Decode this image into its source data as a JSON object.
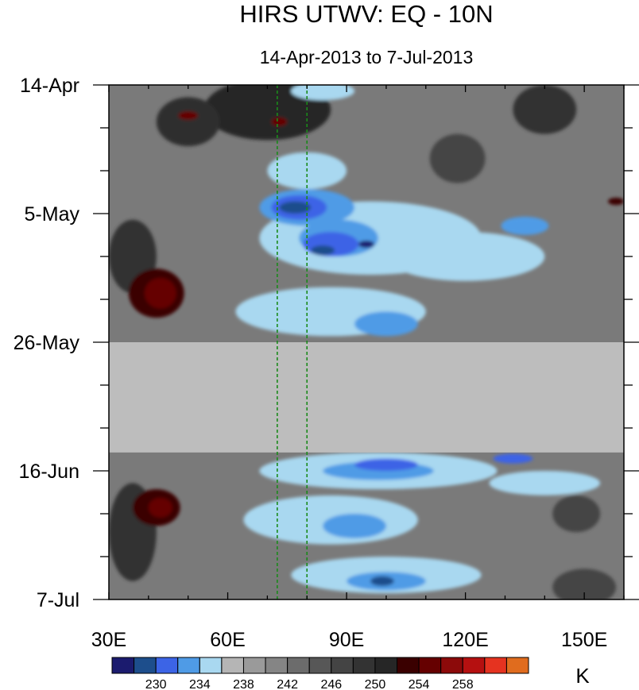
{
  "chart_data": {
    "type": "heatmap",
    "title": "HIRS UTWV: EQ - 10N",
    "subtitle": "14-Apr-2013 to 7-Jul-2013",
    "x_ticks": [
      {
        "value": 30,
        "label": "30E"
      },
      {
        "value": 60,
        "label": "60E"
      },
      {
        "value": 90,
        "label": "90E"
      },
      {
        "value": 120,
        "label": "120E"
      },
      {
        "value": 150,
        "label": "150E"
      }
    ],
    "xlim": [
      30,
      160
    ],
    "y_ticks": [
      {
        "value": "2013-04-14",
        "label": "14-Apr"
      },
      {
        "value": "2013-05-05",
        "label": "5-May"
      },
      {
        "value": "2013-05-26",
        "label": "26-May"
      },
      {
        "value": "2013-06-16",
        "label": "16-Jun"
      },
      {
        "value": "2013-07-07",
        "label": "7-Jul"
      }
    ],
    "ylim": [
      "2013-04-14",
      "2013-07-07"
    ],
    "reference_lines": {
      "color": "#1a8a1a",
      "style": "dashed",
      "x": [
        72.5,
        80
      ]
    },
    "missing_data": {
      "color": "#bdbdbd",
      "from": "2013-05-26",
      "to": "2013-06-13"
    },
    "colorbar": {
      "unit": "K",
      "colors": [
        "#1b1b6e",
        "#1d4e8c",
        "#3c64e6",
        "#4f9be6",
        "#a9d8f0",
        "#b5b5b5",
        "#9a9a9a",
        "#858585",
        "#6c6c6c",
        "#575757",
        "#444444",
        "#333333",
        "#262626",
        "#3a0000",
        "#650000",
        "#8c0a0a",
        "#b51010",
        "#e53320",
        "#e06c1e"
      ],
      "labels": [
        {
          "index": 2,
          "text": "230"
        },
        {
          "index": 4,
          "text": "234"
        },
        {
          "index": 6,
          "text": "238"
        },
        {
          "index": 8,
          "text": "242"
        },
        {
          "index": 10,
          "text": "246"
        },
        {
          "index": 12,
          "text": "250"
        },
        {
          "index": 14,
          "text": "254"
        },
        {
          "index": 16,
          "text": "258"
        }
      ]
    },
    "contour_regions": [
      {
        "level": "#262626",
        "x": 70,
        "y": "2013-04-18",
        "rx": 16,
        "ry": 5
      },
      {
        "level": "#2f2f2f",
        "x": 50,
        "y": "2013-04-20",
        "rx": 8,
        "ry": 4
      },
      {
        "level": "#333333",
        "x": 140,
        "y": "2013-04-18",
        "rx": 8,
        "ry": 4
      },
      {
        "level": "#333333",
        "x": 36,
        "y": "2013-05-12",
        "rx": 6,
        "ry": 6
      },
      {
        "level": "#444444",
        "x": 118,
        "y": "2013-04-26",
        "rx": 7,
        "ry": 4
      },
      {
        "level": "#3a0000",
        "x": 42,
        "y": "2013-05-18",
        "rx": 7,
        "ry": 4
      },
      {
        "level": "#650000",
        "x": 43,
        "y": "2013-05-18",
        "rx": 4,
        "ry": 2.5
      },
      {
        "level": "#650000",
        "x": 50,
        "y": "2013-04-19",
        "rx": 2.5,
        "ry": 0.7
      },
      {
        "level": "#650000",
        "x": 73,
        "y": "2013-04-20",
        "rx": 2,
        "ry": 0.7
      },
      {
        "level": "#3a0000",
        "x": 158,
        "y": "2013-05-03",
        "rx": 2,
        "ry": 0.6
      },
      {
        "level": "#a9d8f0",
        "x": 84,
        "y": "2013-04-15",
        "rx": 8,
        "ry": 1.5
      },
      {
        "level": "#a9d8f0",
        "x": 80,
        "y": "2013-04-28",
        "rx": 10,
        "ry": 3
      },
      {
        "level": "#a9d8f0",
        "x": 96,
        "y": "2013-05-09",
        "rx": 28,
        "ry": 6
      },
      {
        "level": "#a9d8f0",
        "x": 120,
        "y": "2013-05-12",
        "rx": 20,
        "ry": 4
      },
      {
        "level": "#a9d8f0",
        "x": 86,
        "y": "2013-05-21",
        "rx": 24,
        "ry": 4
      },
      {
        "level": "#4f9be6",
        "x": 80,
        "y": "2013-05-04",
        "rx": 12,
        "ry": 3
      },
      {
        "level": "#4f9be6",
        "x": 88,
        "y": "2013-05-09",
        "rx": 10,
        "ry": 3
      },
      {
        "level": "#4f9be6",
        "x": 135,
        "y": "2013-05-07",
        "rx": 6,
        "ry": 1.5
      },
      {
        "level": "#4f9be6",
        "x": 100,
        "y": "2013-05-23",
        "rx": 8,
        "ry": 2
      },
      {
        "level": "#3c64e6",
        "x": 78,
        "y": "2013-05-04",
        "rx": 7,
        "ry": 2
      },
      {
        "level": "#3c64e6",
        "x": 86,
        "y": "2013-05-10",
        "rx": 7,
        "ry": 2
      },
      {
        "level": "#1d4e8c",
        "x": 77,
        "y": "2013-05-04",
        "rx": 4,
        "ry": 1
      },
      {
        "level": "#1d4e8c",
        "x": 84,
        "y": "2013-05-11",
        "rx": 3,
        "ry": 0.8
      },
      {
        "level": "#1b1b6e",
        "x": 95,
        "y": "2013-05-10",
        "rx": 2,
        "ry": 0.6
      },
      {
        "level": "#333333",
        "x": 36,
        "y": "2013-06-26",
        "rx": 6,
        "ry": 8
      },
      {
        "level": "#3a0000",
        "x": 42,
        "y": "2013-06-22",
        "rx": 6,
        "ry": 3
      },
      {
        "level": "#650000",
        "x": 43,
        "y": "2013-06-22",
        "rx": 3,
        "ry": 1.6
      },
      {
        "level": "#a9d8f0",
        "x": 98,
        "y": "2013-06-16",
        "rx": 30,
        "ry": 3
      },
      {
        "level": "#a9d8f0",
        "x": 86,
        "y": "2013-06-24",
        "rx": 22,
        "ry": 4
      },
      {
        "level": "#a9d8f0",
        "x": 100,
        "y": "2013-07-03",
        "rx": 24,
        "ry": 3
      },
      {
        "level": "#a9d8f0",
        "x": 140,
        "y": "2013-06-18",
        "rx": 14,
        "ry": 2
      },
      {
        "level": "#4f9be6",
        "x": 98,
        "y": "2013-06-16",
        "rx": 14,
        "ry": 1.5
      },
      {
        "level": "#4f9be6",
        "x": 92,
        "y": "2013-06-25",
        "rx": 8,
        "ry": 2
      },
      {
        "level": "#4f9be6",
        "x": 100,
        "y": "2013-07-04",
        "rx": 10,
        "ry": 1.5
      },
      {
        "level": "#3c64e6",
        "x": 100,
        "y": "2013-06-15",
        "rx": 8,
        "ry": 1
      },
      {
        "level": "#3c64e6",
        "x": 132,
        "y": "2013-06-14",
        "rx": 5,
        "ry": 0.8
      },
      {
        "level": "#1d4e8c",
        "x": 99,
        "y": "2013-07-04",
        "rx": 3,
        "ry": 0.8
      },
      {
        "level": "#444444",
        "x": 150,
        "y": "2013-07-05",
        "rx": 8,
        "ry": 3
      },
      {
        "level": "#444444",
        "x": 148,
        "y": "2013-06-23",
        "rx": 6,
        "ry": 3
      }
    ]
  }
}
